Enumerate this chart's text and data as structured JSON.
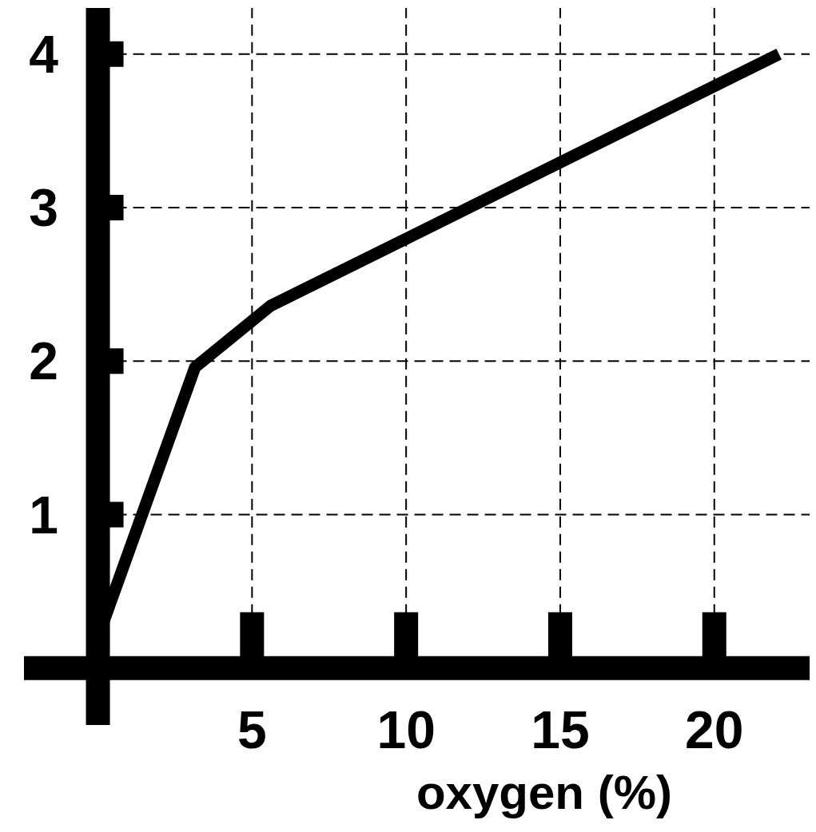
{
  "chart_data": {
    "type": "line",
    "xlabel": "oxygen (%)",
    "x": [
      0,
      3.15,
      5.6,
      22.1
    ],
    "series": [
      {
        "color": "#000000",
        "values": [
          0.2,
          1.96,
          2.36,
          4.0
        ]
      }
    ],
    "xlim": [
      -2.4,
      23.3
    ],
    "ylim": [
      -0.37,
      4.3
    ],
    "xticks": [
      5,
      10,
      15,
      20
    ],
    "yticks": [
      1,
      2,
      3,
      4
    ],
    "grid": true,
    "line_style": "solid",
    "marker": "none"
  }
}
